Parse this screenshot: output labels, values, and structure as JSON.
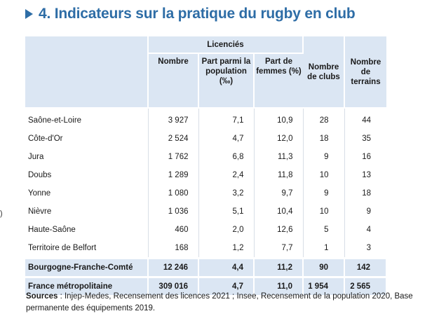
{
  "title": "4. Indicateurs sur la pratique du rugby en club",
  "stray_mark": ")",
  "table": {
    "group_header": "Licenciés",
    "columns": [
      "Nombre",
      "Part parmi la population (‰)",
      "Part de femmes (%)",
      "Nombre de clubs",
      "Nombre de terrains"
    ],
    "rows": [
      {
        "label": "Saône-et-Loire",
        "nombre": "3 927",
        "part_pop": "7,1",
        "part_femmes": "10,9",
        "clubs": "28",
        "terrains": "44"
      },
      {
        "label": "Côte-d'Or",
        "nombre": "2 524",
        "part_pop": "4,7",
        "part_femmes": "12,0",
        "clubs": "18",
        "terrains": "35"
      },
      {
        "label": "Jura",
        "nombre": "1 762",
        "part_pop": "6,8",
        "part_femmes": "11,3",
        "clubs": "9",
        "terrains": "16"
      },
      {
        "label": "Doubs",
        "nombre": "1 289",
        "part_pop": "2,4",
        "part_femmes": "11,8",
        "clubs": "10",
        "terrains": "13"
      },
      {
        "label": "Yonne",
        "nombre": "1 080",
        "part_pop": "3,2",
        "part_femmes": "9,7",
        "clubs": "9",
        "terrains": "18"
      },
      {
        "label": "Nièvre",
        "nombre": "1 036",
        "part_pop": "5,1",
        "part_femmes": "10,4",
        "clubs": "10",
        "terrains": "9"
      },
      {
        "label": "Haute-Saône",
        "nombre": "460",
        "part_pop": "2,0",
        "part_femmes": "12,6",
        "clubs": "5",
        "terrains": "4"
      },
      {
        "label": "Territoire de Belfort",
        "nombre": "168",
        "part_pop": "1,2",
        "part_femmes": "7,7",
        "clubs": "1",
        "terrains": "3"
      }
    ],
    "totals": [
      {
        "label": "Bourgogne-Franche-Comté",
        "nombre": "12 246",
        "part_pop": "4,4",
        "part_femmes": "11,2",
        "clubs": "90",
        "terrains": "142"
      },
      {
        "label": "France métropolitaine",
        "nombre": "309 016",
        "part_pop": "4,7",
        "part_femmes": "11,0",
        "clubs": "1 954",
        "terrains": "2 565"
      }
    ]
  },
  "sources": {
    "label": "Sources",
    "text": " : Injep-Medes, Recensement des licences 2021 ; Insee, Recensement de la population 2020, Base permanente des équipements 2019."
  }
}
